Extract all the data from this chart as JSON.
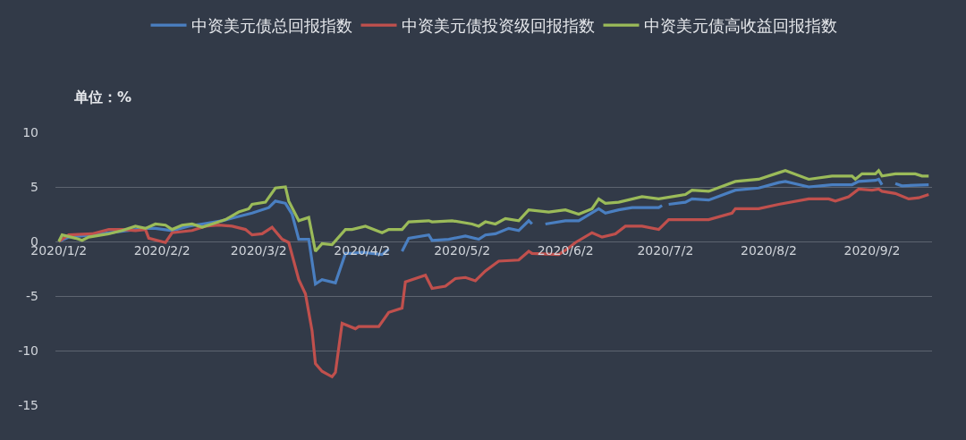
{
  "chart_data": {
    "type": "line",
    "annotations": [
      "单位：%"
    ],
    "xlim": [
      "2020-01-01",
      "2020-09-20"
    ],
    "xticks": [
      {
        "value": "2020-01-02",
        "label": "2020/1/2"
      },
      {
        "value": "2020-02-02",
        "label": "2020/2/2"
      },
      {
        "value": "2020-03-02",
        "label": "2020/3/2"
      },
      {
        "value": "2020-04-02",
        "label": "2020/4/2"
      },
      {
        "value": "2020-05-02",
        "label": "2020/5/2"
      },
      {
        "value": "2020-06-02",
        "label": "2020/6/2"
      },
      {
        "value": "2020-07-02",
        "label": "2020/7/2"
      },
      {
        "value": "2020-08-02",
        "label": "2020/8/2"
      },
      {
        "value": "2020-09-02",
        "label": "2020/9/2"
      }
    ],
    "ylim": [
      -15,
      10
    ],
    "yticks": [
      -15,
      -10,
      -5,
      0,
      5,
      10
    ],
    "grid": "y",
    "legend": "top",
    "marker": "none",
    "line_style": "solid",
    "series": [
      {
        "name": "中资美元债总回报指数",
        "color": "#4a7fc1",
        "x": [
          "2020-01-02",
          "2020-01-05",
          "2020-01-12",
          "2020-01-28",
          "2020-01-31",
          "2020-02-05",
          "2020-02-10",
          "2020-02-14",
          "2020-02-20",
          "2020-02-25",
          "2020-02-29",
          "2020-03-05",
          "2020-03-07",
          "2020-03-10",
          "2020-03-12",
          "2020-03-14",
          "2020-03-17",
          "2020-03-19",
          "2020-03-21",
          "2020-03-25",
          "2020-03-28",
          "2020-03-30",
          "2020-04-02",
          "2020-04-08",
          "2020-04-10",
          "2020-04-12",
          "2020-04-14",
          "2020-04-16",
          "2020-04-22",
          "2020-04-23",
          "2020-04-28",
          "2020-05-03",
          "2020-05-07",
          "2020-05-09",
          "2020-05-12",
          "2020-05-16",
          "2020-05-19",
          "2020-05-22",
          "2020-05-23",
          "2020-05-25",
          "2020-05-27",
          "2020-06-02",
          "2020-06-06",
          "2020-06-12",
          "2020-06-14",
          "2020-06-18",
          "2020-06-22",
          "2020-06-30",
          "2020-07-01",
          "2020-07-02",
          "2020-07-03",
          "2020-07-08",
          "2020-07-10",
          "2020-07-15",
          "2020-07-23",
          "2020-07-30",
          "2020-08-05",
          "2020-08-07",
          "2020-08-14",
          "2020-08-21",
          "2020-08-27",
          "2020-08-29",
          "2020-09-03",
          "2020-09-04",
          "2020-09-05",
          "2020-09-07",
          "2020-09-09",
          "2020-09-11",
          "2020-09-19"
        ],
        "values": [
          0,
          0.4,
          0.6,
          1.2,
          1.2,
          1.0,
          1.4,
          1.6,
          1.9,
          2.3,
          2.6,
          3.1,
          3.7,
          3.5,
          2.5,
          0.2,
          0.2,
          -3.9,
          -3.5,
          -3.8,
          -1.1,
          -1.1,
          -1.0,
          -1.2,
          -0.7,
          null,
          -0.9,
          0.3,
          0.6,
          0.1,
          0.2,
          0.5,
          0.2,
          0.6,
          0.7,
          1.2,
          1.0,
          1.9,
          1.6,
          null,
          1.6,
          1.9,
          1.9,
          3.0,
          2.6,
          2.9,
          3.1,
          3.1,
          3.3,
          null,
          3.4,
          3.6,
          3.9,
          3.8,
          4.7,
          4.9,
          5.4,
          5.5,
          5.0,
          5.2,
          5.2,
          5.5,
          5.6,
          5.7,
          5.2,
          null,
          5.3,
          5.1,
          5.2
        ]
      },
      {
        "name": "中资美元债投资级回报指数",
        "color": "#c0504d",
        "x": [
          "2020-01-02",
          "2020-01-05",
          "2020-01-12",
          "2020-01-17",
          "2020-01-21",
          "2020-01-25",
          "2020-01-28",
          "2020-01-29",
          "2020-02-03",
          "2020-02-05",
          "2020-02-11",
          "2020-02-15",
          "2020-02-19",
          "2020-02-23",
          "2020-02-27",
          "2020-02-29",
          "2020-03-03",
          "2020-03-06",
          "2020-03-09",
          "2020-03-11",
          "2020-03-14",
          "2020-03-16",
          "2020-03-18",
          "2020-03-19",
          "2020-03-21",
          "2020-03-24",
          "2020-03-25",
          "2020-03-27",
          "2020-03-31",
          "2020-04-01",
          "2020-04-07",
          "2020-04-10",
          "2020-04-14",
          "2020-04-15",
          "2020-04-21",
          "2020-04-23",
          "2020-04-27",
          "2020-04-30",
          "2020-05-03",
          "2020-05-06",
          "2020-05-09",
          "2020-05-13",
          "2020-05-19",
          "2020-05-22",
          "2020-05-23",
          "2020-05-31",
          "2020-06-03",
          "2020-06-05",
          "2020-06-10",
          "2020-06-13",
          "2020-06-17",
          "2020-06-20",
          "2020-06-25",
          "2020-06-30",
          "2020-07-03",
          "2020-07-15",
          "2020-07-22",
          "2020-07-23",
          "2020-07-30",
          "2020-08-05",
          "2020-08-14",
          "2020-08-20",
          "2020-08-22",
          "2020-08-26",
          "2020-08-29",
          "2020-09-02",
          "2020-09-04",
          "2020-09-05",
          "2020-09-09",
          "2020-09-13",
          "2020-09-16",
          "2020-09-19"
        ],
        "values": [
          0,
          0.6,
          0.7,
          1.1,
          1.1,
          1.0,
          1.1,
          0.3,
          -0.1,
          0.8,
          1.0,
          1.4,
          1.5,
          1.4,
          1.1,
          0.6,
          0.7,
          1.3,
          0.2,
          -0.1,
          -3.5,
          -4.8,
          -8.2,
          -11.2,
          -11.9,
          -12.4,
          -12.0,
          -7.5,
          -8.0,
          -7.8,
          -7.8,
          -6.5,
          -6.1,
          -3.7,
          -3.1,
          -4.3,
          -4.1,
          -3.4,
          -3.3,
          -3.6,
          -2.7,
          -1.8,
          -1.7,
          -0.9,
          -1.1,
          -1.2,
          -0.6,
          -0.1,
          0.8,
          0.4,
          0.7,
          1.4,
          1.4,
          1.1,
          2.0,
          2.0,
          2.6,
          3.0,
          3.0,
          3.4,
          3.9,
          3.9,
          3.7,
          4.1,
          4.8,
          4.7,
          4.8,
          4.6,
          4.4,
          3.9,
          4.0,
          4.3
        ]
      },
      {
        "name": "中资美元债高收益回报指数",
        "color": "#9bbb59",
        "x": [
          "2020-01-02",
          "2020-01-03",
          "2020-01-07",
          "2020-01-09",
          "2020-01-11",
          "2020-01-15",
          "2020-01-17",
          "2020-01-21",
          "2020-01-25",
          "2020-01-28",
          "2020-01-31",
          "2020-02-03",
          "2020-02-05",
          "2020-02-08",
          "2020-02-11",
          "2020-02-14",
          "2020-02-17",
          "2020-02-21",
          "2020-02-25",
          "2020-02-28",
          "2020-02-29",
          "2020-03-04",
          "2020-03-07",
          "2020-03-10",
          "2020-03-11",
          "2020-03-14",
          "2020-03-17",
          "2020-03-19",
          "2020-03-21",
          "2020-03-24",
          "2020-03-28",
          "2020-03-30",
          "2020-04-03",
          "2020-04-08",
          "2020-04-10",
          "2020-04-14",
          "2020-04-16",
          "2020-04-22",
          "2020-04-23",
          "2020-04-29",
          "2020-05-05",
          "2020-05-07",
          "2020-05-09",
          "2020-05-12",
          "2020-05-15",
          "2020-05-19",
          "2020-05-22",
          "2020-05-28",
          "2020-06-02",
          "2020-06-06",
          "2020-06-10",
          "2020-06-12",
          "2020-06-14",
          "2020-06-18",
          "2020-06-25",
          "2020-06-30",
          "2020-07-08",
          "2020-07-10",
          "2020-07-15",
          "2020-07-23",
          "2020-07-30",
          "2020-08-05",
          "2020-08-07",
          "2020-08-14",
          "2020-08-21",
          "2020-08-27",
          "2020-08-28",
          "2020-08-30",
          "2020-09-03",
          "2020-09-04",
          "2020-09-05",
          "2020-09-09",
          "2020-09-15",
          "2020-09-17",
          "2020-09-19"
        ],
        "values": [
          0,
          0.6,
          0.3,
          0.1,
          0.4,
          0.6,
          0.7,
          1.0,
          1.4,
          1.2,
          1.6,
          1.5,
          1.1,
          1.5,
          1.6,
          1.3,
          1.6,
          2.0,
          2.7,
          3.0,
          3.4,
          3.6,
          4.9,
          5.0,
          3.7,
          1.9,
          2.2,
          -0.9,
          -0.2,
          -0.3,
          1.1,
          1.1,
          1.4,
          0.8,
          1.1,
          1.1,
          1.8,
          1.9,
          1.8,
          1.9,
          1.6,
          1.4,
          1.8,
          1.6,
          2.1,
          1.9,
          2.9,
          2.7,
          2.9,
          2.5,
          3.0,
          3.9,
          3.5,
          3.6,
          4.1,
          3.9,
          4.3,
          4.7,
          4.6,
          5.5,
          5.7,
          6.3,
          6.5,
          5.7,
          6.0,
          6.0,
          5.7,
          6.2,
          6.2,
          6.5,
          6.0,
          6.2,
          6.2,
          6.0,
          6.0
        ]
      }
    ]
  }
}
